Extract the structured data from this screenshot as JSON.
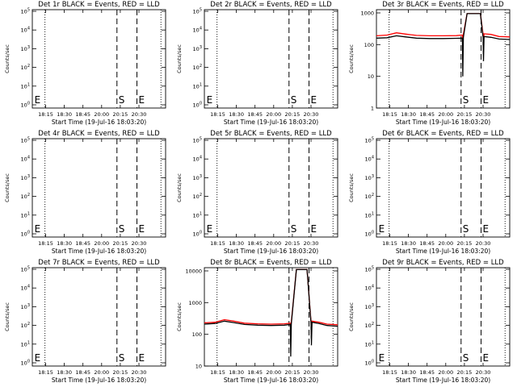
{
  "chart_data": [
    {
      "type": "line",
      "title": "Det 1r BLACK = Events, RED = LLD",
      "xlabel": "Start Time (19-Jul-16 18:03:20)",
      "ylabel": "Counts/sec",
      "xticks": [
        "18:15",
        "18:30",
        "18:45",
        "20:00",
        "20:15",
        "20:30"
      ],
      "yscale": "log",
      "ytick_style": "pow",
      "yticks": [
        "10^0",
        "10^1",
        "10^2",
        "10^3",
        "10^4",
        "10^5"
      ],
      "has_data": false,
      "dotted_x": [
        "18:15",
        "20:30"
      ],
      "dashed_x": [
        "20:06",
        "20:21"
      ],
      "markers": [
        {
          "text": "E",
          "x": "18:03"
        },
        {
          "text": "S",
          "x": "20:06"
        },
        {
          "text": "E",
          "x": "20:21"
        }
      ]
    },
    {
      "type": "line",
      "title": "Det 2r BLACK = Events, RED = LLD",
      "xlabel": "Start Time (19-Jul-16 18:03:20)",
      "ylabel": "Counts/sec",
      "xticks": [
        "18:15",
        "18:30",
        "18:45",
        "20:00",
        "20:15",
        "20:30"
      ],
      "yscale": "log",
      "ytick_style": "pow",
      "yticks": [
        "10^0",
        "10^1",
        "10^2",
        "10^3",
        "10^4",
        "10^5"
      ],
      "has_data": false,
      "dotted_x": [
        "18:15",
        "20:30"
      ],
      "dashed_x": [
        "20:06",
        "20:21"
      ],
      "markers": [
        {
          "text": "E",
          "x": "18:03"
        },
        {
          "text": "S",
          "x": "20:06"
        },
        {
          "text": "E",
          "x": "20:21"
        }
      ]
    },
    {
      "type": "line",
      "title": "Det 3r BLACK = Events, RED = LLD",
      "xlabel": "Start Time (19-Jul-16 18:03:20)",
      "ylabel": "Counts/sec",
      "xticks": [
        "18:15",
        "18:30",
        "18:45",
        "20:00",
        "20:15",
        "20:30"
      ],
      "yscale": "log",
      "ytick_style": "plain",
      "yticks": [
        "1",
        "10",
        "100",
        "1000"
      ],
      "has_data": true,
      "dotted_x": [
        "18:15",
        "20:30"
      ],
      "dashed_x": [
        "20:06",
        "20:21"
      ],
      "markers": [
        {
          "text": "S",
          "x": "20:06"
        },
        {
          "text": "E",
          "x": "20:21"
        }
      ],
      "series": [
        {
          "name": "RED = LLD",
          "color": "#ff0000",
          "points": [
            [
              0,
              190
            ],
            [
              0.08,
              200
            ],
            [
              0.15,
              235
            ],
            [
              0.22,
              215
            ],
            [
              0.3,
              195
            ],
            [
              0.4,
              190
            ],
            [
              0.5,
              190
            ],
            [
              0.6,
              192
            ],
            [
              0.645,
              200
            ],
            [
              0.648,
              80
            ],
            [
              0.652,
              210
            ],
            [
              0.68,
              950
            ],
            [
              0.78,
              950
            ],
            [
              0.8,
              210
            ],
            [
              0.803,
              90
            ],
            [
              0.807,
              220
            ],
            [
              0.86,
              210
            ],
            [
              0.92,
              180
            ],
            [
              1.0,
              175
            ]
          ]
        },
        {
          "name": "BLACK = Events",
          "color": "#000000",
          "points": [
            [
              0,
              160
            ],
            [
              0.08,
              165
            ],
            [
              0.15,
              190
            ],
            [
              0.22,
              175
            ],
            [
              0.3,
              160
            ],
            [
              0.4,
              155
            ],
            [
              0.5,
              155
            ],
            [
              0.6,
              158
            ],
            [
              0.645,
              160
            ],
            [
              0.648,
              10
            ],
            [
              0.652,
              170
            ],
            [
              0.68,
              950
            ],
            [
              0.78,
              950
            ],
            [
              0.8,
              170
            ],
            [
              0.803,
              30
            ],
            [
              0.807,
              180
            ],
            [
              0.86,
              170
            ],
            [
              0.92,
              150
            ],
            [
              1.0,
              145
            ]
          ]
        }
      ]
    },
    {
      "type": "line",
      "title": "Det 4r BLACK = Events, RED = LLD",
      "xlabel": "Start Time (19-Jul-16 18:03:20)",
      "ylabel": "Counts/sec",
      "xticks": [
        "18:15",
        "18:30",
        "18:45",
        "20:00",
        "20:15",
        "20:30"
      ],
      "yscale": "log",
      "ytick_style": "pow",
      "yticks": [
        "10^0",
        "10^1",
        "10^2",
        "10^3",
        "10^4",
        "10^5"
      ],
      "has_data": false,
      "dotted_x": [
        "18:15",
        "20:30"
      ],
      "dashed_x": [
        "20:06",
        "20:21"
      ],
      "markers": [
        {
          "text": "E",
          "x": "18:03"
        },
        {
          "text": "S",
          "x": "20:06"
        },
        {
          "text": "E",
          "x": "20:21"
        }
      ]
    },
    {
      "type": "line",
      "title": "Det 5r BLACK = Events, RED = LLD",
      "xlabel": "Start Time (19-Jul-16 18:03:20)",
      "ylabel": "Counts/sec",
      "xticks": [
        "18:15",
        "18:30",
        "18:45",
        "20:00",
        "20:15",
        "20:30"
      ],
      "yscale": "log",
      "ytick_style": "pow",
      "yticks": [
        "10^0",
        "10^1",
        "10^2",
        "10^3",
        "10^4",
        "10^5"
      ],
      "has_data": false,
      "dotted_x": [
        "18:15",
        "20:30"
      ],
      "dashed_x": [
        "20:06",
        "20:21"
      ],
      "markers": [
        {
          "text": "E",
          "x": "18:03"
        },
        {
          "text": "S",
          "x": "20:06"
        },
        {
          "text": "E",
          "x": "20:21"
        }
      ]
    },
    {
      "type": "line",
      "title": "Det 6r BLACK = Events, RED = LLD",
      "xlabel": "Start Time (19-Jul-16 18:03:20)",
      "ylabel": "Counts/sec",
      "xticks": [
        "18:15",
        "18:30",
        "18:45",
        "20:00",
        "20:15",
        "20:30"
      ],
      "yscale": "log",
      "ytick_style": "pow",
      "yticks": [
        "10^0",
        "10^1",
        "10^2",
        "10^3",
        "10^4",
        "10^5"
      ],
      "has_data": false,
      "dotted_x": [
        "18:15",
        "20:30"
      ],
      "dashed_x": [
        "20:06",
        "20:21"
      ],
      "markers": [
        {
          "text": "E",
          "x": "18:03"
        },
        {
          "text": "S",
          "x": "20:06"
        },
        {
          "text": "E",
          "x": "20:21"
        }
      ]
    },
    {
      "type": "line",
      "title": "Det 7r BLACK = Events, RED = LLD",
      "xlabel": "Start Time (19-Jul-16 18:03:20)",
      "ylabel": "Counts/sec",
      "xticks": [
        "18:15",
        "18:30",
        "18:45",
        "20:00",
        "20:15",
        "20:30"
      ],
      "yscale": "log",
      "ytick_style": "pow",
      "yticks": [
        "10^0",
        "10^1",
        "10^2",
        "10^3",
        "10^4",
        "10^5"
      ],
      "has_data": false,
      "dotted_x": [
        "18:15",
        "20:30"
      ],
      "dashed_x": [
        "20:06",
        "20:21"
      ],
      "markers": [
        {
          "text": "E",
          "x": "18:03"
        },
        {
          "text": "S",
          "x": "20:06"
        },
        {
          "text": "E",
          "x": "20:21"
        }
      ]
    },
    {
      "type": "line",
      "title": "Det 8r BLACK = Events, RED = LLD",
      "xlabel": "Start Time (19-Jul-16 18:03:20)",
      "ylabel": "Counts/sec",
      "xticks": [
        "18:15",
        "18:30",
        "18:45",
        "20:00",
        "20:15",
        "20:30"
      ],
      "yscale": "log",
      "ytick_style": "plain",
      "yticks": [
        "10",
        "100",
        "1000",
        "10000"
      ],
      "has_data": true,
      "dotted_x": [
        "18:15",
        "20:30"
      ],
      "dashed_x": [
        "20:06",
        "20:21"
      ],
      "markers": [],
      "series": [
        {
          "name": "RED = LLD",
          "color": "#ff0000",
          "points": [
            [
              0,
              230
            ],
            [
              0.08,
              240
            ],
            [
              0.15,
              290
            ],
            [
              0.22,
              260
            ],
            [
              0.3,
              225
            ],
            [
              0.4,
              215
            ],
            [
              0.5,
              210
            ],
            [
              0.6,
              215
            ],
            [
              0.645,
              225
            ],
            [
              0.648,
              120
            ],
            [
              0.652,
              240
            ],
            [
              0.69,
              11000
            ],
            [
              0.77,
              11000
            ],
            [
              0.8,
              250
            ],
            [
              0.803,
              100
            ],
            [
              0.807,
              260
            ],
            [
              0.86,
              240
            ],
            [
              0.92,
              210
            ],
            [
              1.0,
              200
            ]
          ]
        },
        {
          "name": "BLACK = Events",
          "color": "#000000",
          "points": [
            [
              0,
              210
            ],
            [
              0.08,
              220
            ],
            [
              0.15,
              260
            ],
            [
              0.22,
              235
            ],
            [
              0.3,
              205
            ],
            [
              0.4,
              195
            ],
            [
              0.5,
              190
            ],
            [
              0.6,
              195
            ],
            [
              0.645,
              205
            ],
            [
              0.648,
              20
            ],
            [
              0.652,
              215
            ],
            [
              0.69,
              11000
            ],
            [
              0.77,
              11000
            ],
            [
              0.8,
              230
            ],
            [
              0.803,
              45
            ],
            [
              0.807,
              240
            ],
            [
              0.86,
              220
            ],
            [
              0.92,
              190
            ],
            [
              1.0,
              180
            ]
          ]
        }
      ]
    },
    {
      "type": "line",
      "title": "Det 9r BLACK = Events, RED = LLD",
      "xlabel": "Start Time (19-Jul-16 18:03:20)",
      "ylabel": "Counts/sec",
      "xticks": [
        "18:15",
        "18:30",
        "18:45",
        "20:00",
        "20:15",
        "20:30"
      ],
      "yscale": "log",
      "ytick_style": "pow",
      "yticks": [
        "10^0",
        "10^1",
        "10^2",
        "10^3",
        "10^4",
        "10^5"
      ],
      "has_data": false,
      "dotted_x": [
        "18:15",
        "20:30"
      ],
      "dashed_x": [
        "20:06",
        "20:21"
      ],
      "markers": [
        {
          "text": "E",
          "x": "18:03"
        },
        {
          "text": "S",
          "x": "20:06"
        },
        {
          "text": "E",
          "x": "20:21"
        }
      ]
    }
  ]
}
